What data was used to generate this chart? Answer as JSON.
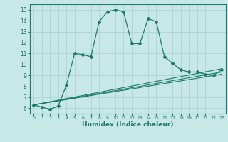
{
  "xlabel": "Humidex (Indice chaleur)",
  "bg_color": "#c8e8e8",
  "line_color": "#1a7a6a",
  "grid_color": "#a8d0d0",
  "xlim": [
    -0.5,
    23.5
  ],
  "ylim": [
    5.5,
    15.5
  ],
  "xticks": [
    0,
    1,
    2,
    3,
    4,
    5,
    6,
    7,
    8,
    9,
    10,
    11,
    12,
    13,
    14,
    15,
    16,
    17,
    18,
    19,
    20,
    21,
    22,
    23
  ],
  "yticks": [
    6,
    7,
    8,
    9,
    10,
    11,
    12,
    13,
    14,
    15
  ],
  "main_line_x": [
    0,
    1,
    2,
    3,
    4,
    5,
    6,
    7,
    8,
    9,
    10,
    11,
    12,
    13,
    14,
    15,
    16,
    17,
    18,
    19,
    20,
    21,
    22,
    23
  ],
  "main_line_y": [
    6.3,
    6.1,
    5.9,
    6.2,
    8.1,
    11.0,
    10.9,
    10.7,
    13.9,
    14.8,
    15.0,
    14.8,
    11.9,
    11.9,
    14.2,
    13.9,
    10.7,
    10.1,
    9.5,
    9.3,
    9.3,
    9.1,
    9.0,
    9.5
  ],
  "ref_line1_x": [
    0,
    23
  ],
  "ref_line1_y": [
    6.3,
    9.1
  ],
  "ref_line2_x": [
    0,
    23
  ],
  "ref_line2_y": [
    6.3,
    9.3
  ],
  "ref_line3_x": [
    0,
    23
  ],
  "ref_line3_y": [
    6.3,
    9.6
  ]
}
